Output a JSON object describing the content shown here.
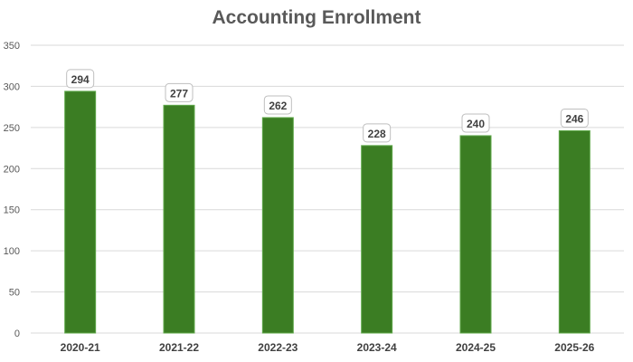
{
  "chart_data": {
    "type": "bar",
    "title": "Accounting Enrollment",
    "xlabel": "",
    "ylabel": "",
    "categories": [
      "2020-21",
      "2021-22",
      "2022-23",
      "2023-24",
      "2024-25",
      "2025-26"
    ],
    "values": [
      294,
      277,
      262,
      228,
      240,
      246
    ],
    "ylim": [
      0,
      350
    ],
    "yticks": [
      0,
      50,
      100,
      150,
      200,
      250,
      300,
      350
    ],
    "grid": true,
    "legend": "none",
    "bar_color": "#3b7d23",
    "data_labels": true
  }
}
